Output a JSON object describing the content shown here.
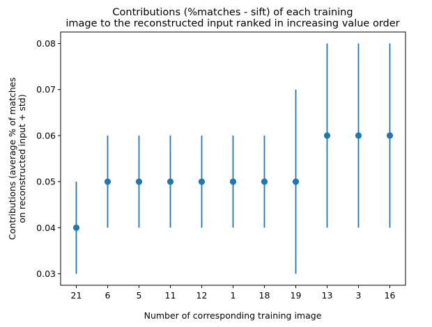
{
  "chart_data": {
    "type": "scatter",
    "title_lines": [
      "Contributions (%matches - sift) of each training",
      "image to the reconstructed input ranked in increasing value order"
    ],
    "xlabel": "Number of corresponding training image",
    "ylabel_lines": [
      "Contributions (average % of matches",
      "on reconstructed input + std)"
    ],
    "categories": [
      "21",
      "6",
      "5",
      "11",
      "12",
      "1",
      "18",
      "19",
      "13",
      "3",
      "16"
    ],
    "values": [
      0.04,
      0.05,
      0.05,
      0.05,
      0.05,
      0.05,
      0.05,
      0.05,
      0.06,
      0.06,
      0.06
    ],
    "error_low": [
      0.03,
      0.04,
      0.04,
      0.04,
      0.04,
      0.04,
      0.04,
      0.03,
      0.04,
      0.04,
      0.04
    ],
    "error_high": [
      0.05,
      0.06,
      0.06,
      0.06,
      0.06,
      0.06,
      0.06,
      0.07,
      0.08,
      0.08,
      0.08
    ],
    "yticks": [
      "0.03",
      "0.04",
      "0.05",
      "0.06",
      "0.07",
      "0.08"
    ],
    "ylim": [
      0.0275,
      0.0825
    ],
    "grid": false,
    "marker_color": "#1f77b4"
  }
}
